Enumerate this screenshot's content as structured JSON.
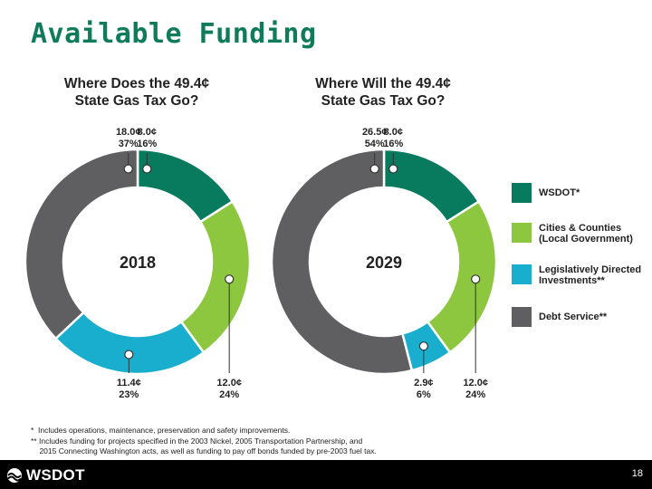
{
  "slide": {
    "title": "Available Funding",
    "page_number": "18",
    "logo_text": "WSDOT"
  },
  "colors": {
    "WSDOT": "#087a5e",
    "Cities & Counties": "#8dc63f",
    "Legislatively Directed": "#19aece",
    "Debt Service": "#5f5f61"
  },
  "legend": {
    "items": [
      {
        "label": "WSDOT*",
        "color": "#087a5e"
      },
      {
        "label": "Cities & Counties\n(Local Government)",
        "color": "#8dc63f"
      },
      {
        "label": "Legislatively Directed\nInvestments**",
        "color": "#19aece"
      },
      {
        "label": "Debt Service**",
        "color": "#5f5f61"
      }
    ]
  },
  "footnotes": [
    "*  Includes operations, maintenance, preservation and safety improvements.",
    "** Includes funding for projects specified in the 2003 Nickel, 2005 Transportation Partnership, and",
    "    2015 Connecting Washington acts, as well as funding to pay off bonds funded by pre-2003 fuel tax."
  ],
  "chart_data": [
    {
      "type": "pie",
      "donut": true,
      "title": "Where Does the 49.4¢\nState Gas Tax Go?",
      "center_label": "2018",
      "slices": [
        {
          "name": "WSDOT*",
          "cents": "8.0¢",
          "percent": "16%",
          "value": 16
        },
        {
          "name": "Cities & Counties (Local Government)",
          "cents": "12.0¢",
          "percent": "24%",
          "value": 24
        },
        {
          "name": "Legislatively Directed Investments**",
          "cents": "11.4¢",
          "percent": "23%",
          "value": 23
        },
        {
          "name": "Debt Service**",
          "cents": "18.0¢",
          "percent": "37%",
          "value": 37
        }
      ]
    },
    {
      "type": "pie",
      "donut": true,
      "title": "Where Will the 49.4¢\nState Gas Tax Go?",
      "center_label": "2029",
      "slices": [
        {
          "name": "WSDOT*",
          "cents": "8.0¢",
          "percent": "16%",
          "value": 16
        },
        {
          "name": "Cities & Counties (Local Government)",
          "cents": "12.0¢",
          "percent": "24%",
          "value": 24
        },
        {
          "name": "Legislatively Directed Investments**",
          "cents": "2.9¢",
          "percent": "6%",
          "value": 6
        },
        {
          "name": "Debt Service**",
          "cents": "26.5¢",
          "percent": "54%",
          "value": 54
        }
      ]
    }
  ]
}
